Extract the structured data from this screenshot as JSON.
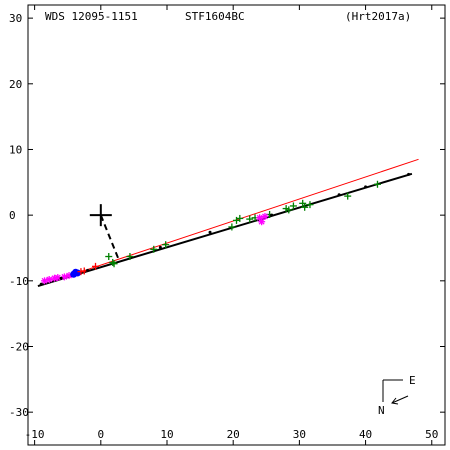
{
  "header": {
    "left": "WDS 12095-1151",
    "center": "STF1604BC",
    "right": "(Hrt2017a)"
  },
  "compass": {
    "east": "E",
    "north": "N"
  },
  "colors": {
    "frame": "#000000",
    "orbit": "#000000",
    "rectilinear": "#ff0000",
    "green": "#008000",
    "magenta": "#ff00ff",
    "blue": "#0000ff",
    "red_point": "#ff0000",
    "black_point": "#000000"
  },
  "chart_data": {
    "type": "scatter",
    "title": "",
    "xlabel": "",
    "ylabel": "",
    "xlim": [
      -11,
      52
    ],
    "ylim": [
      -35,
      32
    ],
    "x_ticks": [
      -10,
      0,
      10,
      20,
      30,
      40,
      50
    ],
    "y_ticks": [
      30,
      20,
      10,
      0,
      -10,
      -20,
      -30
    ],
    "x_tick_labels": [
      "-10",
      "0",
      "10",
      "20",
      "30",
      "40",
      "50"
    ],
    "y_tick_labels": [
      "30",
      "20",
      "10",
      "0",
      "-10",
      "-20",
      "-30"
    ],
    "grid": false,
    "primary": {
      "x": 0,
      "y": 0
    },
    "orbit_line": {
      "x": [
        -9.5,
        47
      ],
      "y": [
        -10.8,
        6.3
      ]
    },
    "rectilinear_line": {
      "x": [
        -9.5,
        48
      ],
      "y": [
        -10.8,
        8.5
      ]
    },
    "connector": {
      "from": [
        0,
        0
      ],
      "to": [
        2.8,
        -7.0
      ]
    },
    "series": [
      {
        "marker": "plus",
        "color": "green",
        "points": [
          [
            1.2,
            -6.3
          ],
          [
            1.8,
            -7.2
          ],
          [
            2.0,
            -7.4
          ],
          [
            4.4,
            -6.3
          ],
          [
            8.0,
            -5.2
          ],
          [
            9.8,
            -4.5
          ],
          [
            19.8,
            -1.8
          ],
          [
            20.5,
            -0.8
          ],
          [
            21.0,
            -0.5
          ],
          [
            22.5,
            -0.6
          ],
          [
            23.3,
            -0.4
          ],
          [
            25.5,
            0.1
          ],
          [
            28.0,
            1.0
          ],
          [
            28.4,
            0.8
          ],
          [
            29.1,
            1.4
          ],
          [
            30.5,
            1.8
          ],
          [
            30.8,
            1.2
          ],
          [
            31.6,
            1.6
          ],
          [
            37.3,
            2.9
          ],
          [
            41.8,
            4.7
          ]
        ]
      },
      {
        "marker": "star",
        "color": "magenta",
        "points": [
          [
            -8.5,
            -10.0
          ],
          [
            -7.8,
            -9.8
          ],
          [
            -7.0,
            -9.6
          ],
          [
            -6.5,
            -9.5
          ],
          [
            -5.5,
            -9.4
          ],
          [
            -4.8,
            -9.2
          ],
          [
            24.0,
            -0.4
          ],
          [
            24.3,
            -1.0
          ],
          [
            24.8,
            -0.2
          ]
        ]
      },
      {
        "marker": "circle",
        "color": "blue",
        "points": [
          [
            -3.8,
            -8.7
          ],
          [
            -3.5,
            -8.8
          ],
          [
            -4.1,
            -9.0
          ]
        ]
      },
      {
        "marker": "plus",
        "color": "red_point",
        "points": [
          [
            -0.8,
            -7.8
          ],
          [
            -2.5,
            -8.5
          ],
          [
            -3.0,
            -8.6
          ]
        ]
      },
      {
        "marker": "dot",
        "color": "black_point",
        "points": [
          [
            -9.0,
            -10.5
          ],
          [
            -6.0,
            -9.6
          ],
          [
            -2.0,
            -8.4
          ],
          [
            9.0,
            -4.9
          ],
          [
            16.5,
            -2.6
          ],
          [
            25.8,
            0.0
          ],
          [
            36.0,
            3.1
          ],
          [
            40.0,
            4.3
          ],
          [
            46.5,
            6.2
          ]
        ]
      }
    ]
  }
}
